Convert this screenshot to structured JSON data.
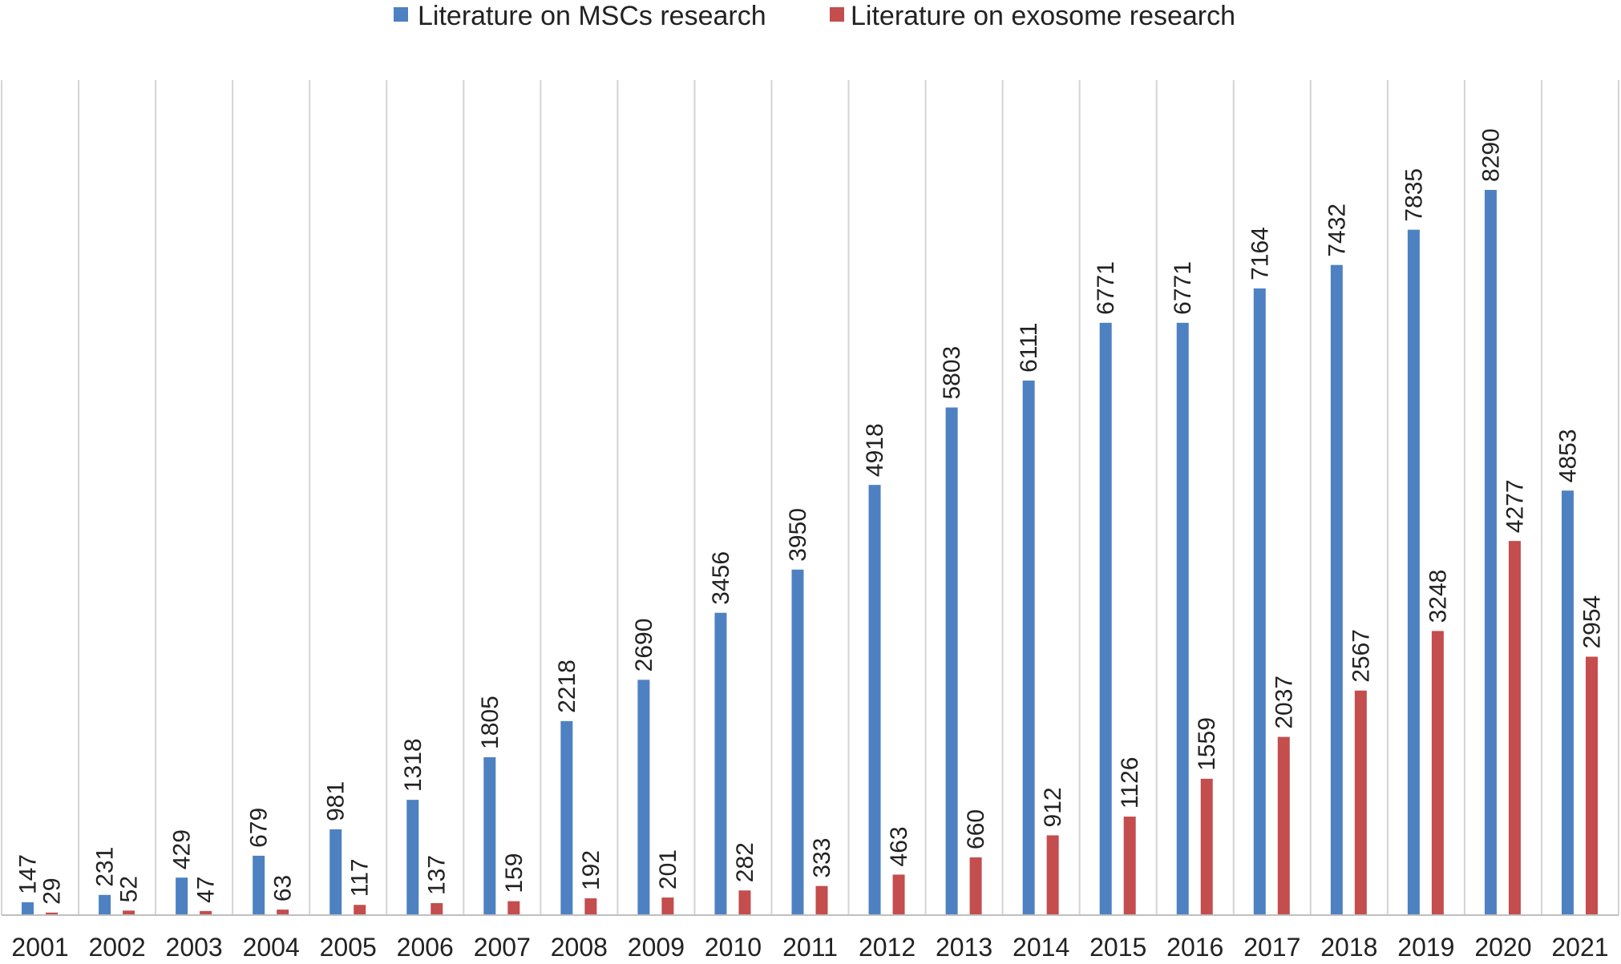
{
  "chart_data": {
    "type": "bar",
    "categories": [
      "2001",
      "2002",
      "2003",
      "2004",
      "2005",
      "2006",
      "2007",
      "2008",
      "2009",
      "2010",
      "2011",
      "2012",
      "2013",
      "2014",
      "2015",
      "2016",
      "2017",
      "2018",
      "2019",
      "2020",
      "2021"
    ],
    "series": [
      {
        "name": "Literature on MSCs research",
        "color": "#4E81C2",
        "values": [
          147,
          231,
          429,
          679,
          981,
          1318,
          1805,
          2218,
          2690,
          3456,
          3950,
          4918,
          5803,
          6111,
          6771,
          6771,
          7164,
          7432,
          7835,
          8290,
          4853
        ]
      },
      {
        "name": "Literature on exosome research",
        "color": "#C44D4D",
        "values": [
          29,
          52,
          47,
          63,
          117,
          137,
          159,
          192,
          201,
          282,
          333,
          463,
          660,
          912,
          1126,
          1559,
          2037,
          2567,
          3248,
          4277,
          2954
        ]
      }
    ],
    "title": "",
    "xlabel": "",
    "ylabel": "",
    "ylim": [
      0,
      9000
    ],
    "grid": "vertical separators between categories",
    "legend_position": "top-center",
    "data_labels": "rotated values above each bar"
  }
}
